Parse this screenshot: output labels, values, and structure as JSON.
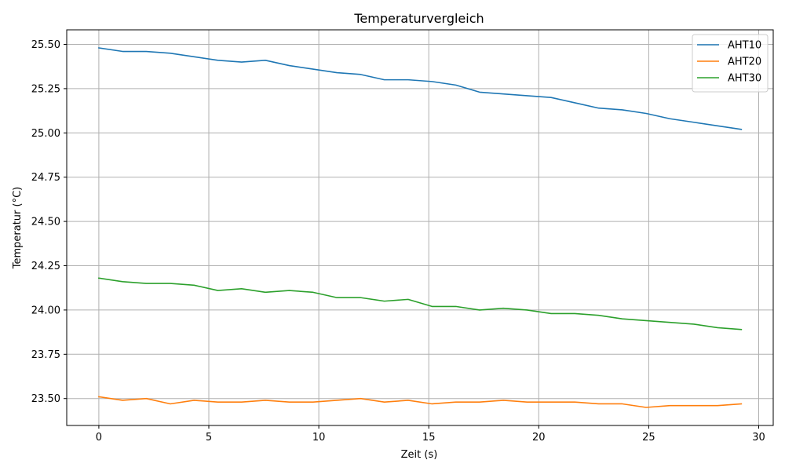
{
  "chart_data": {
    "type": "line",
    "title": "Temperaturvergleich",
    "xlabel": "Zeit (s)",
    "ylabel": "Temperatur (°C)",
    "xlim": [
      -1.46,
      30.66
    ],
    "ylim": [
      23.348,
      25.582
    ],
    "xticks": [
      0,
      5,
      10,
      15,
      20,
      25,
      30
    ],
    "xtick_labels": [
      "0",
      "5",
      "10",
      "15",
      "20",
      "25",
      "30"
    ],
    "yticks": [
      23.5,
      23.75,
      24.0,
      24.25,
      24.5,
      24.75,
      25.0,
      25.25,
      25.5
    ],
    "ytick_labels": [
      "23.50",
      "23.75",
      "24.00",
      "24.25",
      "24.50",
      "24.75",
      "25.00",
      "25.25",
      "25.50"
    ],
    "grid": true,
    "legend_position": "top-right",
    "x": [
      0,
      1.08,
      2.16,
      3.25,
      4.33,
      5.41,
      6.49,
      7.57,
      8.66,
      9.74,
      10.82,
      11.9,
      12.98,
      14.06,
      15.15,
      16.23,
      17.31,
      18.39,
      19.47,
      20.56,
      21.64,
      22.72,
      23.8,
      24.88,
      25.96,
      27.05,
      28.13,
      29.21
    ],
    "series": [
      {
        "name": "AHT10",
        "color": "#1f77b4",
        "values": [
          25.48,
          25.46,
          25.46,
          25.45,
          25.43,
          25.41,
          25.4,
          25.41,
          25.38,
          25.36,
          25.34,
          25.33,
          25.3,
          25.3,
          25.29,
          25.27,
          25.23,
          25.22,
          25.21,
          25.2,
          25.17,
          25.14,
          25.13,
          25.11,
          25.08,
          25.06,
          25.04,
          25.02
        ]
      },
      {
        "name": "AHT20",
        "color": "#ff7f0e",
        "values": [
          23.51,
          23.49,
          23.5,
          23.47,
          23.49,
          23.48,
          23.48,
          23.49,
          23.48,
          23.48,
          23.49,
          23.5,
          23.48,
          23.49,
          23.47,
          23.48,
          23.48,
          23.49,
          23.48,
          23.48,
          23.48,
          23.47,
          23.47,
          23.45,
          23.46,
          23.46,
          23.46,
          23.47
        ]
      },
      {
        "name": "AHT30",
        "color": "#2ca02c",
        "values": [
          24.18,
          24.16,
          24.15,
          24.15,
          24.14,
          24.11,
          24.12,
          24.1,
          24.11,
          24.1,
          24.07,
          24.07,
          24.05,
          24.06,
          24.02,
          24.02,
          24.0,
          24.01,
          24.0,
          23.98,
          23.98,
          23.97,
          23.95,
          23.94,
          23.93,
          23.92,
          23.9,
          23.89
        ]
      }
    ]
  }
}
